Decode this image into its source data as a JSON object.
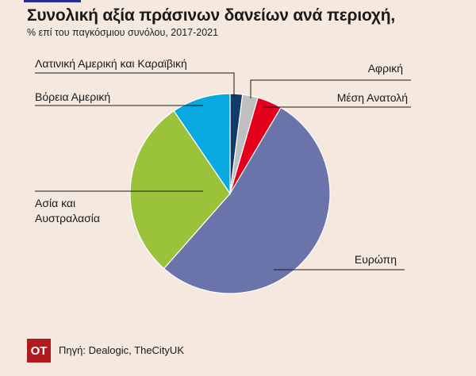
{
  "page": {
    "title": "Συνολική αξία πράσινων δανείων ανά περιοχή,",
    "subtitle": "% επί του παγκόσμιου συνόλου, 2017-2021",
    "logo_text": "ΟΤ",
    "source": "Πηγή: Dealogic, TheCityUK"
  },
  "chart_data": {
    "type": "pie",
    "title": "Συνολική αξία πράσινων δανείων ανά περιοχή,",
    "subtitle": "% επί του παγκόσμιου συνόλου, 2017-2021",
    "start": "top",
    "direction": "clockwise",
    "legend": "none",
    "slices": [
      {
        "id": "latin-america",
        "label": "Λατινική Αμερική και Καραϊβική",
        "value": 2,
        "color": "#123a6b"
      },
      {
        "id": "africa",
        "label": "Αφρική",
        "value": 2.5,
        "color": "#bfbfbf"
      },
      {
        "id": "middle-east",
        "label": "Μέση Ανατολή",
        "value": 4,
        "color": "#e2001a"
      },
      {
        "id": "europe",
        "label": "Ευρώπη",
        "value": 53,
        "color": "#6b74aa"
      },
      {
        "id": "asia-australasia",
        "label": "Ασία και Αυστραλασία",
        "value": 29,
        "color": "#9bc33a"
      },
      {
        "id": "north-america",
        "label": "Βόρεια Αμερική",
        "value": 9.5,
        "color": "#0aa8e0"
      }
    ]
  }
}
